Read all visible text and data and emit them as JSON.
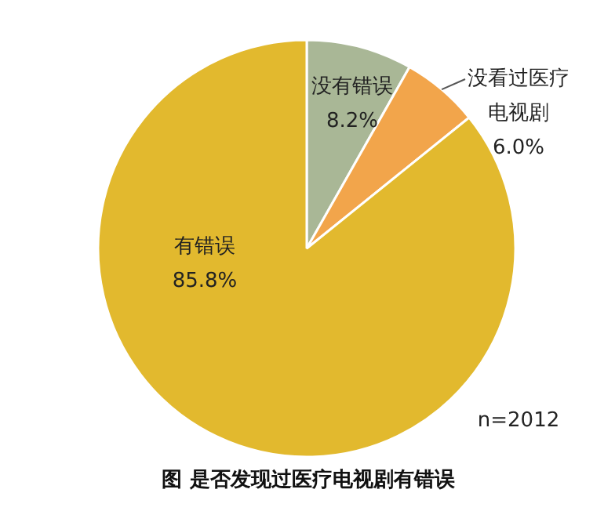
{
  "chart_data": {
    "type": "pie",
    "title": "图 是否发现过医疗电视剧有错误",
    "categories": [
      "没有错误",
      "没看过医疗电视剧",
      "有错误"
    ],
    "values": [
      8.2,
      6.0,
      85.8
    ],
    "colors": [
      "#a9b796",
      "#f2a54b",
      "#e2b92e"
    ],
    "value_labels": [
      "8.2%",
      "6.0%",
      "85.8%"
    ],
    "annotations": [
      "n=2012"
    ],
    "legend": false
  }
}
